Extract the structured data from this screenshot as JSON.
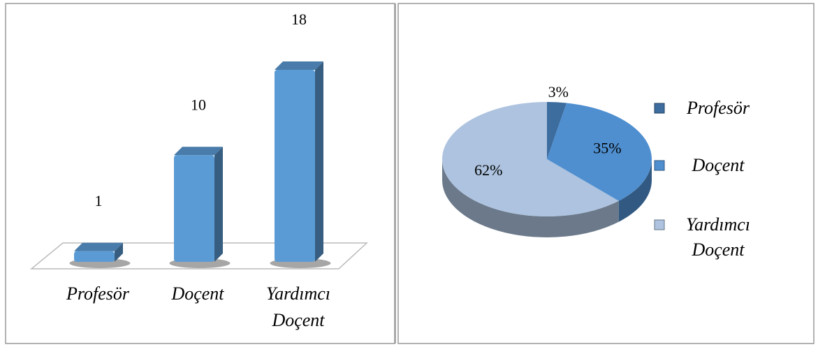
{
  "chart_data": [
    {
      "type": "bar",
      "categories": [
        "Profesör",
        "Doçent",
        "Yardımcı Doçent"
      ],
      "values": [
        1,
        10,
        18
      ],
      "color": "#5b9bd5"
    },
    {
      "type": "pie",
      "categories": [
        "Profesör",
        "Doçent",
        "Yardımcı Doçent"
      ],
      "values": [
        3,
        35,
        62
      ],
      "value_labels": [
        "3%",
        "35%",
        "62%"
      ],
      "colors": [
        "#3d6c9e",
        "#4f8fd0",
        "#adc3df"
      ],
      "legend": "right"
    }
  ]
}
